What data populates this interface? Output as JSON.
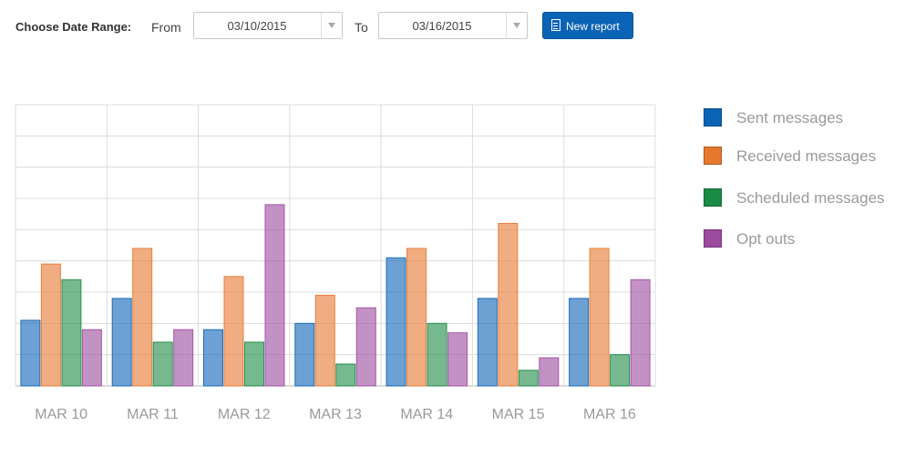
{
  "toolbar": {
    "range_label": "Choose Date Range:",
    "from_label": "From",
    "from_date": "03/10/2015",
    "to_label": "To",
    "to_date": "03/16/2015",
    "new_report_label": "New report",
    "new_report_icon": "document-icon",
    "dropdown_icon": "chevron-down-icon"
  },
  "colors": {
    "sent": "#0b63b5",
    "received": "#e8772e",
    "scheduled": "#1a8a45",
    "optout": "#9b4a9e"
  },
  "chart_data": {
    "type": "bar",
    "categories": [
      "MAR 10",
      "MAR 11",
      "MAR 12",
      "MAR 13",
      "MAR 14",
      "MAR 15",
      "MAR 16"
    ],
    "series": [
      {
        "name": "Sent messages",
        "key": "sent",
        "values": [
          2.1,
          2.8,
          1.8,
          2.0,
          4.1,
          2.8,
          2.8
        ]
      },
      {
        "name": "Received messages",
        "key": "received",
        "values": [
          3.9,
          4.4,
          3.5,
          2.9,
          4.4,
          5.2,
          4.4
        ]
      },
      {
        "name": "Scheduled messages",
        "key": "scheduled",
        "values": [
          3.4,
          1.4,
          1.4,
          0.7,
          2.0,
          0.5,
          1.0
        ]
      },
      {
        "name": "Opt outs",
        "key": "optout",
        "values": [
          1.8,
          1.8,
          5.8,
          2.5,
          1.7,
          0.9,
          3.4
        ]
      }
    ],
    "ylim": [
      0,
      9
    ],
    "yticks_count": 9,
    "grid": true,
    "legend_position": "right"
  }
}
